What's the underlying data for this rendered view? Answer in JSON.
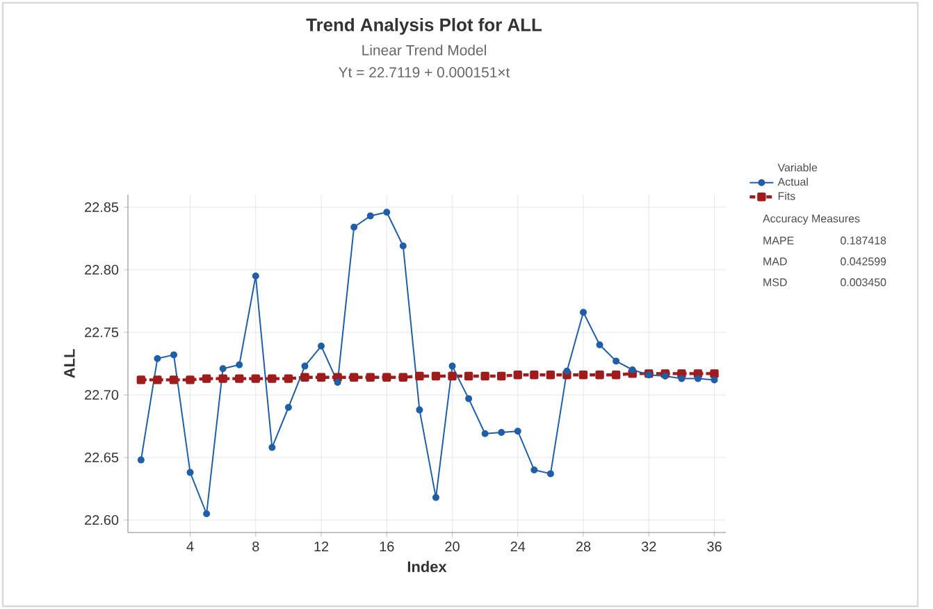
{
  "chart_data": {
    "type": "line",
    "title": "Trend Analysis Plot for ALL",
    "subtitle": "Linear Trend Model",
    "xlabel": "Index",
    "ylabel": "ALL",
    "legend_title": "Variable",
    "x": [
      1,
      2,
      3,
      4,
      5,
      6,
      7,
      8,
      9,
      10,
      11,
      12,
      13,
      14,
      15,
      16,
      17,
      18,
      19,
      20,
      21,
      22,
      23,
      24,
      25,
      26,
      27,
      28,
      29,
      30,
      31,
      32,
      33,
      34,
      35,
      36
    ],
    "series": [
      {
        "name": "Actual",
        "color": "#1f5ea8",
        "marker": "circle",
        "line_style": "solid",
        "values": [
          22.648,
          22.729,
          22.732,
          22.638,
          22.605,
          22.721,
          22.724,
          22.795,
          22.658,
          22.69,
          22.723,
          22.739,
          22.71,
          22.834,
          22.843,
          22.846,
          22.819,
          22.688,
          22.618,
          22.723,
          22.697,
          22.669,
          22.67,
          22.671,
          22.64,
          22.637,
          22.719,
          22.766,
          22.74,
          22.727,
          22.72,
          22.716,
          22.715,
          22.713,
          22.713,
          22.712
        ]
      },
      {
        "name": "Fits",
        "color": "#a01c1c",
        "marker": "square",
        "line_style": "dashed",
        "values": [
          22.712,
          22.712,
          22.712,
          22.712,
          22.713,
          22.713,
          22.713,
          22.713,
          22.713,
          22.713,
          22.714,
          22.714,
          22.714,
          22.714,
          22.714,
          22.714,
          22.714,
          22.715,
          22.715,
          22.715,
          22.715,
          22.715,
          22.715,
          22.716,
          22.716,
          22.716,
          22.716,
          22.716,
          22.716,
          22.716,
          22.717,
          22.717,
          22.717,
          22.717,
          22.717,
          22.717
        ]
      }
    ],
    "xlim": [
      0.2,
      36.7
    ],
    "ylim": [
      22.59,
      22.86
    ],
    "xticks": [
      4,
      8,
      12,
      16,
      20,
      24,
      28,
      32,
      36
    ],
    "yticks": [
      {
        "value": 22.6,
        "label": "22.60"
      },
      {
        "value": 22.65,
        "label": "22.65"
      },
      {
        "value": 22.7,
        "label": "22.70"
      },
      {
        "value": 22.75,
        "label": "22.75"
      },
      {
        "value": 22.8,
        "label": "22.80"
      },
      {
        "value": 22.85,
        "label": "22.85"
      }
    ],
    "grid": true,
    "legend": "right",
    "annotations": [
      "Yt = 22.7119 + 0.000151×t",
      "Accuracy Measures",
      "MAPE",
      "0.187418",
      "MAD",
      "0.042599",
      "MSD",
      "0.003450"
    ]
  }
}
